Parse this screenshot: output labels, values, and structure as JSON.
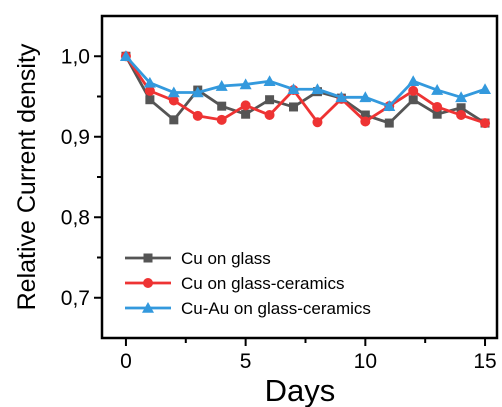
{
  "chart_data": {
    "type": "line",
    "xlabel": "Days",
    "ylabel": "Relative Current density",
    "xlim": [
      -1,
      15.5
    ],
    "ylim": [
      0.65,
      1.05
    ],
    "xticks": [
      0,
      5,
      10,
      15
    ],
    "xtick_labels": [
      "0",
      "5",
      "10",
      "15"
    ],
    "yticks": [
      0.7,
      0.8,
      0.9,
      1.0
    ],
    "ytick_labels": [
      "0,7",
      "0,8",
      "0,9",
      "1,0"
    ],
    "grid": false,
    "legend_position": "bottom-left",
    "x": [
      0,
      1,
      2,
      3,
      4,
      5,
      6,
      7,
      8,
      9,
      10,
      11,
      12,
      13,
      14,
      15
    ],
    "series": [
      {
        "name": "Cu on glass",
        "color": "#555555",
        "marker": "square",
        "values": [
          1.0,
          0.946,
          0.921,
          0.958,
          0.938,
          0.928,
          0.946,
          0.937,
          0.956,
          0.948,
          0.927,
          0.917,
          0.946,
          0.928,
          0.936,
          0.917
        ]
      },
      {
        "name": "Cu on glass-ceramics",
        "color": "#ee3333",
        "marker": "circle",
        "values": [
          1.0,
          0.957,
          0.945,
          0.926,
          0.921,
          0.939,
          0.927,
          0.958,
          0.918,
          0.947,
          0.919,
          0.938,
          0.957,
          0.937,
          0.927,
          0.917
        ]
      },
      {
        "name": "Cu-Au on glass-ceramics",
        "color": "#3399dd",
        "marker": "triangle",
        "values": [
          1.0,
          0.967,
          0.955,
          0.955,
          0.963,
          0.965,
          0.969,
          0.959,
          0.959,
          0.949,
          0.949,
          0.938,
          0.969,
          0.958,
          0.949,
          0.959
        ]
      }
    ]
  }
}
